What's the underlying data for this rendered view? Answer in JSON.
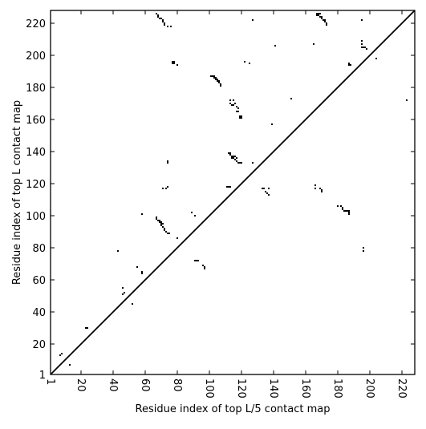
{
  "chart_data": {
    "type": "scatter",
    "x_label": "Residue index of top L/5 contact map",
    "y_label": "Residue index of top L contact map",
    "color": "#000000",
    "xlim": [
      1,
      228
    ],
    "ylim": [
      1,
      228
    ],
    "xticks": [
      1,
      20,
      40,
      60,
      80,
      100,
      120,
      140,
      160,
      180,
      200,
      220
    ],
    "yticks": [
      1,
      20,
      40,
      60,
      80,
      100,
      120,
      140,
      160,
      180,
      200,
      220
    ],
    "diagonal": true,
    "x": [
      7,
      8,
      13,
      23,
      24,
      43,
      46,
      47,
      46,
      52,
      55,
      58,
      58,
      58,
      67,
      67,
      68,
      69,
      70,
      70,
      71,
      72,
      72,
      73,
      74,
      75,
      69,
      70,
      71,
      80,
      73,
      74,
      71,
      74,
      74,
      67,
      68,
      68,
      69,
      70,
      71,
      71,
      72,
      72,
      74,
      76,
      77,
      78,
      78,
      77,
      80,
      89,
      91,
      91,
      92,
      93,
      96,
      97,
      97,
      101,
      102,
      103,
      104,
      105,
      106,
      107,
      107,
      103,
      104,
      105,
      106,
      122,
      125,
      127,
      141,
      113,
      115,
      113,
      114,
      115,
      116,
      117,
      118,
      117,
      118,
      119,
      120,
      119,
      120,
      151,
      139,
      112,
      113,
      113,
      114,
      115,
      116,
      117,
      116,
      117,
      118,
      119,
      120,
      114,
      115,
      127,
      111,
      112,
      113,
      133,
      134,
      135,
      136,
      137,
      137,
      165,
      166,
      166,
      169,
      170,
      170,
      167,
      168,
      169,
      168,
      169,
      170,
      170,
      171,
      172,
      172,
      173,
      173,
      167,
      180,
      182,
      183,
      183,
      184,
      185,
      186,
      187,
      187,
      187,
      187,
      187,
      188,
      195,
      195,
      195,
      195,
      196,
      197,
      198,
      204,
      223,
      196,
      196
    ],
    "values": [
      13,
      14,
      7,
      30,
      30,
      78,
      51,
      52,
      55,
      45,
      68,
      64,
      65,
      101,
      99,
      98,
      97,
      96,
      95,
      94,
      93,
      92,
      91,
      90,
      89,
      89,
      97,
      96,
      95,
      86,
      117,
      118,
      117,
      133,
      134,
      226,
      225,
      224,
      223,
      223,
      222,
      221,
      220,
      219,
      218,
      218,
      196,
      196,
      195,
      195,
      194,
      102,
      100,
      72,
      72,
      72,
      69,
      68,
      67,
      187,
      187,
      186,
      185,
      184,
      183,
      182,
      181,
      187,
      186,
      185,
      184,
      196,
      195,
      222,
      206,
      172,
      172,
      170,
      169,
      169,
      170,
      168,
      167,
      165,
      165,
      162,
      162,
      161,
      161,
      173,
      157,
      139,
      139,
      138,
      137,
      137,
      137,
      136,
      135,
      134,
      133,
      133,
      133,
      136,
      136,
      133,
      118,
      118,
      118,
      117,
      117,
      115,
      114,
      113,
      117,
      207,
      119,
      117,
      117,
      116,
      115,
      226,
      226,
      226,
      225,
      224,
      224,
      223,
      222,
      222,
      221,
      220,
      219,
      225,
      106,
      106,
      105,
      104,
      103,
      103,
      103,
      102,
      101,
      103,
      195,
      194,
      194,
      222,
      209,
      207,
      205,
      205,
      205,
      204,
      198,
      172,
      80,
      78
    ]
  }
}
